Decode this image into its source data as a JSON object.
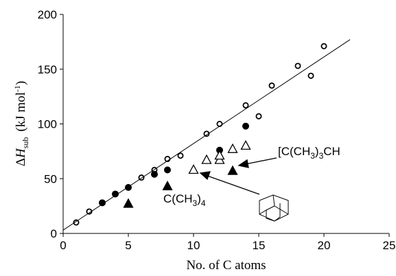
{
  "chart_data": {
    "type": "scatter",
    "xlabel": "No. of C atoms",
    "ylabel": {
      "delta": "Δ",
      "symbol": "H",
      "sub": "sub",
      "unit": "(kJ mol",
      "sup": "-1",
      "close": ")"
    },
    "xlim": [
      0,
      25
    ],
    "ylim": [
      0,
      200
    ],
    "xticks": [
      0,
      5,
      10,
      15,
      20,
      25
    ],
    "yticks": [
      0,
      50,
      100,
      150,
      200
    ],
    "series": [
      {
        "marker": "circle",
        "filled": false,
        "color": "#000000",
        "x": [
          1,
          2,
          6,
          7,
          8,
          9,
          11,
          12,
          14,
          15,
          16,
          18,
          19,
          20
        ],
        "values": [
          10,
          20,
          51,
          58,
          68,
          71,
          91,
          100,
          117,
          107,
          135,
          153,
          144,
          171
        ]
      },
      {
        "marker": "circle",
        "filled": true,
        "color": "#000000",
        "x": [
          3,
          4,
          5,
          7,
          8,
          12,
          14
        ],
        "values": [
          28,
          36,
          42,
          54,
          58,
          76,
          98
        ]
      },
      {
        "marker": "triangle",
        "filled": true,
        "color": "#000000",
        "x": [
          5,
          8,
          13
        ],
        "values": [
          27,
          43,
          57
        ]
      },
      {
        "marker": "triangle",
        "filled": false,
        "color": "#000000",
        "x": [
          10,
          11,
          12,
          12,
          13,
          14
        ],
        "values": [
          58,
          67,
          67,
          71,
          77,
          80
        ]
      },
      {
        "marker": "line",
        "color": "#000000",
        "x": [
          0,
          22
        ],
        "values": [
          3,
          177
        ]
      }
    ],
    "annotations": [
      {
        "text": "[C(CH3)3CH"
      },
      {
        "text": "C(CH3)4"
      }
    ]
  }
}
